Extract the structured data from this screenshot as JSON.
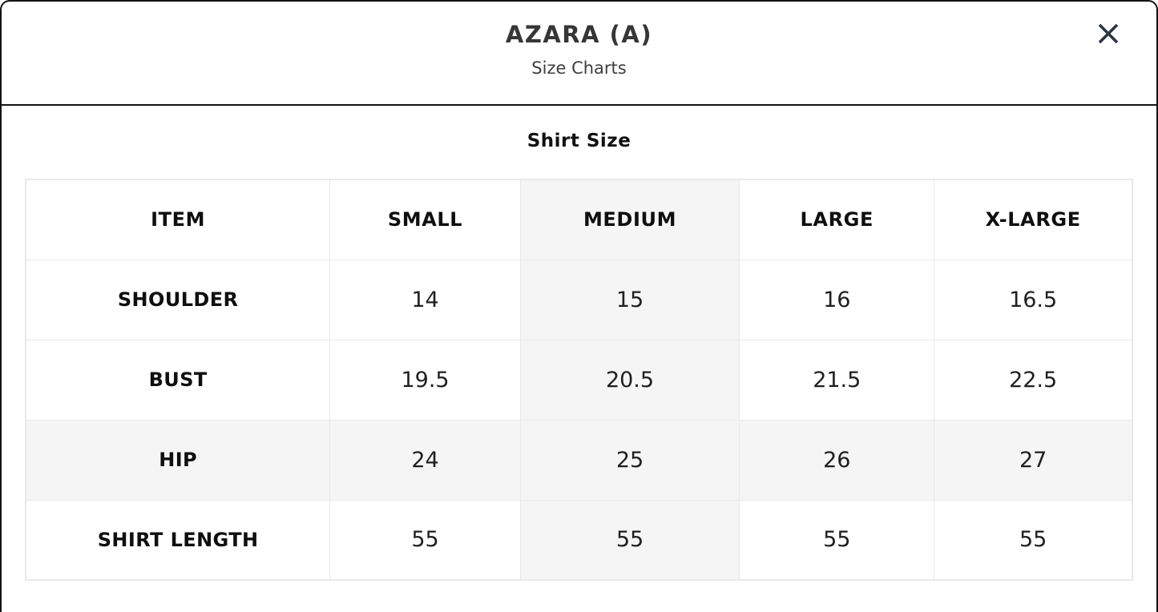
{
  "modal": {
    "title": "AZARA (A)",
    "subtitle": "Size Charts"
  },
  "size_chart": {
    "heading": "Shirt Size",
    "columns": [
      "ITEM",
      "SMALL",
      "MEDIUM",
      "LARGE",
      "X-LARGE"
    ],
    "rows": [
      {
        "label": "SHOULDER",
        "values": [
          "14",
          "15",
          "16",
          "16.5"
        ]
      },
      {
        "label": "BUST",
        "values": [
          "19.5",
          "20.5",
          "21.5",
          "22.5"
        ]
      },
      {
        "label": "HIP",
        "values": [
          "24",
          "25",
          "26",
          "27"
        ]
      },
      {
        "label": "SHIRT LENGTH",
        "values": [
          "55",
          "55",
          "55",
          "55"
        ]
      }
    ],
    "shaded_column_index": 2,
    "shaded_row_label": "HIP",
    "column_widths_pct": [
      27.5,
      17.2,
      19.8,
      17.6,
      17.9
    ]
  },
  "colors": {
    "shaded_cell": "#f5f5f5",
    "table_border": "#e9e9e9",
    "header_divider": "#121212",
    "modal_border": "#121212",
    "close_icon": "#2b3442",
    "title_text": "#363636",
    "body_text": "#1f1f1f"
  }
}
